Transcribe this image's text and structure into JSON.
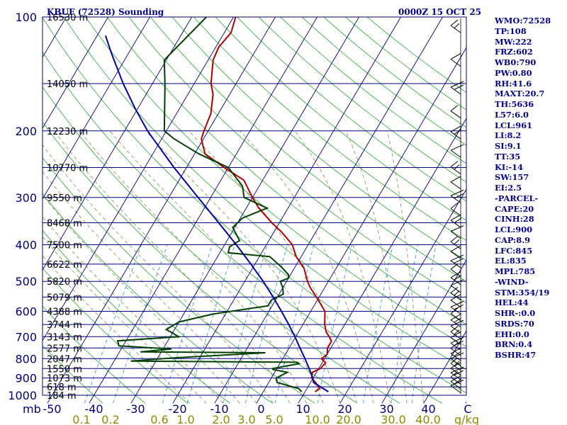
{
  "header": {
    "station": "KBUF (72528) Sounding",
    "time": "0000Z 15 OCT 25"
  },
  "axes": {
    "pressure_ticks": [
      {
        "p": 100,
        "label": "100"
      },
      {
        "p": 200,
        "label": "200"
      },
      {
        "p": 300,
        "label": "300"
      },
      {
        "p": 400,
        "label": "400"
      },
      {
        "p": 500,
        "label": "500"
      },
      {
        "p": 600,
        "label": "600"
      },
      {
        "p": 700,
        "label": "700"
      },
      {
        "p": 800,
        "label": "800"
      },
      {
        "p": 900,
        "label": "900"
      },
      {
        "p": 1000,
        "label": "1000"
      }
    ],
    "pressure_unit": "mb",
    "temp_ticks": [
      {
        "t": -50,
        "label": "-50"
      },
      {
        "t": -40,
        "label": "-40"
      },
      {
        "t": -30,
        "label": "-30"
      },
      {
        "t": -20,
        "label": "-20"
      },
      {
        "t": -10,
        "label": "-10"
      },
      {
        "t": 0,
        "label": "0"
      },
      {
        "t": 10,
        "label": "10"
      },
      {
        "t": 20,
        "label": "20"
      },
      {
        "t": 30,
        "label": "30"
      },
      {
        "t": 40,
        "label": "40"
      }
    ],
    "temp_unit": "C",
    "mixing_ratio_labels": [
      "0.1",
      "0.2",
      "0.6",
      "1.0",
      "2.0",
      "3.0",
      "5.0",
      "10.0",
      "20.0",
      "30.0",
      "40.0"
    ],
    "mixing_ratio_unit": "g/kg"
  },
  "chart_data": {
    "type": "line",
    "title": "KBUF (72528) Sounding 0000Z 15 OCT 25",
    "xlabel": "C",
    "ylabel": "mb",
    "xlim": [
      -50,
      50
    ],
    "ylim": [
      1000,
      100
    ],
    "height_labels": [
      {
        "p": 100,
        "label": "16530 m"
      },
      {
        "p": 150,
        "label": "14050 m"
      },
      {
        "p": 200,
        "label": "12230 m"
      },
      {
        "p": 250,
        "label": "10770 m"
      },
      {
        "p": 300,
        "label": "9550 m"
      },
      {
        "p": 350,
        "label": "8468 m"
      },
      {
        "p": 400,
        "label": "7500 m"
      },
      {
        "p": 450,
        "label": "6622 m"
      },
      {
        "p": 500,
        "label": "5820 m"
      },
      {
        "p": 550,
        "label": "5079 m"
      },
      {
        "p": 600,
        "label": "4388 m"
      },
      {
        "p": 650,
        "label": "3744 m"
      },
      {
        "p": 700,
        "label": "3143 m"
      },
      {
        "p": 750,
        "label": "2577 m"
      },
      {
        "p": 800,
        "label": "2047 m"
      },
      {
        "p": 850,
        "label": "1550 m"
      },
      {
        "p": 900,
        "label": "1073 m"
      },
      {
        "p": 950,
        "label": "618 m"
      },
      {
        "p": 1000,
        "label": "184 m"
      }
    ],
    "series": [
      {
        "name": "temperature",
        "color": "#B00000",
        "points": [
          [
            979,
            12.4
          ],
          [
            960,
            13.0
          ],
          [
            925,
            11.2
          ],
          [
            900,
            9.6
          ],
          [
            870,
            9.0
          ],
          [
            850,
            10.4
          ],
          [
            820,
            10.8
          ],
          [
            800,
            9.2
          ],
          [
            780,
            10.0
          ],
          [
            750,
            9.2
          ],
          [
            720,
            9.2
          ],
          [
            700,
            8.0
          ],
          [
            680,
            6.6
          ],
          [
            650,
            5.2
          ],
          [
            600,
            3.4
          ],
          [
            560,
            0.2
          ],
          [
            520,
            -3.4
          ],
          [
            500,
            -5.0
          ],
          [
            460,
            -7.8
          ],
          [
            430,
            -11.2
          ],
          [
            400,
            -13.8
          ],
          [
            370,
            -18.2
          ],
          [
            350,
            -21.8
          ],
          [
            320,
            -27.0
          ],
          [
            300,
            -30.0
          ],
          [
            270,
            -34.5
          ],
          [
            250,
            -41.0
          ],
          [
            230,
            -47.5
          ],
          [
            210,
            -50.5
          ],
          [
            200,
            -51.0
          ],
          [
            180,
            -51.8
          ],
          [
            160,
            -54.0
          ],
          [
            150,
            -56.0
          ],
          [
            130,
            -58.8
          ],
          [
            120,
            -59.3
          ],
          [
            110,
            -58.4
          ],
          [
            100,
            -59.5
          ]
        ]
      },
      {
        "name": "dewpoint",
        "color": "#004000",
        "points": [
          [
            979,
            9.2
          ],
          [
            960,
            8.0
          ],
          [
            925,
            2.0
          ],
          [
            900,
            1.2
          ],
          [
            870,
            3.0
          ],
          [
            855,
            -0.8
          ],
          [
            850,
            -1.0
          ],
          [
            825,
            4.6
          ],
          [
            818,
            4.0
          ],
          [
            812,
            -36.0
          ],
          [
            795,
            -25.0
          ],
          [
            772,
            -5.0
          ],
          [
            768,
            -35.0
          ],
          [
            755,
            -28.0
          ],
          [
            740,
            -41.0
          ],
          [
            718,
            -42.0
          ],
          [
            700,
            -28.0
          ],
          [
            670,
            -32.0
          ],
          [
            640,
            -30.0
          ],
          [
            610,
            -23.0
          ],
          [
            580,
            -11.0
          ],
          [
            560,
            -11.0
          ],
          [
            540,
            -9.0
          ],
          [
            520,
            -10.0
          ],
          [
            500,
            -11.5
          ],
          [
            490,
            -10.0
          ],
          [
            480,
            -10.5
          ],
          [
            460,
            -13.0
          ],
          [
            430,
            -17.5
          ],
          [
            420,
            -28.0
          ],
          [
            405,
            -28.5
          ],
          [
            390,
            -27.0
          ],
          [
            360,
            -30.5
          ],
          [
            340,
            -29.5
          ],
          [
            320,
            -25.0
          ],
          [
            300,
            -32.0
          ],
          [
            280,
            -34.0
          ],
          [
            250,
            -40.0
          ],
          [
            230,
            -49.0
          ],
          [
            210,
            -57.0
          ],
          [
            200,
            -60.5
          ],
          [
            175,
            -63.5
          ],
          [
            150,
            -67.0
          ],
          [
            130,
            -70.5
          ],
          [
            100,
            -66.5
          ]
        ]
      },
      {
        "name": "parcel",
        "color": "#0000A0",
        "points": [
          [
            979,
            15.6
          ],
          [
            950,
            13.0
          ],
          [
            925,
            10.7
          ],
          [
            900,
            9.9
          ],
          [
            850,
            7.7
          ],
          [
            800,
            5.3
          ],
          [
            750,
            2.6
          ],
          [
            700,
            -0.2
          ],
          [
            650,
            -3.4
          ],
          [
            600,
            -7.0
          ],
          [
            550,
            -11.0
          ],
          [
            500,
            -15.6
          ],
          [
            450,
            -21.0
          ],
          [
            400,
            -27.2
          ],
          [
            350,
            -34.5
          ],
          [
            300,
            -43.0
          ],
          [
            250,
            -53.0
          ],
          [
            200,
            -64.5
          ],
          [
            175,
            -70.5
          ],
          [
            150,
            -77.0
          ],
          [
            125,
            -84.0
          ],
          [
            112,
            -88.0
          ]
        ]
      }
    ]
  },
  "indices": [
    "WMO:72528",
    "TP:108",
    "MW:222",
    "FRZ:602",
    "WB0:790",
    "PW:0.80",
    "RH:41.6",
    "MAXT:20.7",
    "TH:5636",
    "L57:6.0",
    "LCL:961",
    "LI:8.2",
    "SI:9.1",
    "TT:35",
    "KI:-14",
    "SW:157",
    "EI:2.5",
    "-PARCEL-",
    "CAPE:20",
    "CINH:28",
    "LCL:900",
    "CAP:8.9",
    "LFC:845",
    "EL:835",
    "MPL:785",
    "-WIND-",
    "STM:354/19",
    "HEL:44",
    "SHR-:0.0",
    "SRDS:70",
    "EHI:0.0",
    "BRN:0.4",
    "BSHR:47"
  ],
  "colors": {
    "isobar": "#000080",
    "isotherm": "#000080",
    "dry_adiabat": "#3CB043",
    "moist_adiabat": "#8B8B4B",
    "mixing_ratio": "#3AA0D0",
    "axis_label": "#000080",
    "mixing_label": "#8B8B00",
    "text": "#00008B",
    "wind": "#000000"
  }
}
